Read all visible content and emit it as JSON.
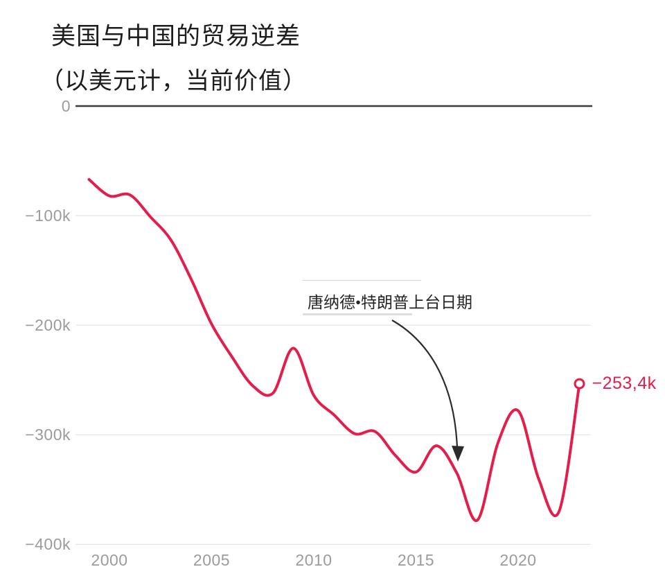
{
  "header": {
    "title": "美国与中国的贸易逆差",
    "subtitle": "（以美元计，当前价值）"
  },
  "annotation": {
    "text": "唐纳德•特朗普上台日期",
    "target_year": 2017
  },
  "colors": {
    "line": "#e41e4a",
    "end_label": "#e41e4a",
    "zero_axis": "#3c3c3c",
    "grid": "#e3e3e3",
    "tick_text": "#9b9b9b",
    "title_text": "#1d1d1d",
    "annotation_text": "#252525",
    "arrow": "#2b2b2b",
    "background": "#ffffff"
  },
  "chart_data": {
    "type": "line",
    "title": "美国与中国的贸易逆差（以美元计，当前价值）",
    "xlabel": "",
    "ylabel": "",
    "unit": "k (千，百万美元计)",
    "x": [
      1999,
      2000,
      2001,
      2002,
      2003,
      2004,
      2005,
      2006,
      2007,
      2008,
      2009,
      2010,
      2011,
      2012,
      2013,
      2014,
      2015,
      2016,
      2017,
      2018,
      2019,
      2020,
      2021,
      2022,
      2023
    ],
    "series": [
      {
        "name": "美国与中国的贸易逆差",
        "values": [
          -67,
          -82,
          -81,
          -101,
          -122,
          -158,
          -199,
          -229,
          -255,
          -262,
          -221,
          -264,
          -282,
          -299,
          -297,
          -319,
          -334,
          -310,
          -335,
          -378,
          -308,
          -278,
          -340,
          -370,
          -253.4
        ]
      }
    ],
    "ylim": [
      -400,
      0
    ],
    "xlim": [
      1999,
      2023.6
    ],
    "yticks": [
      {
        "value": 0,
        "label": "0"
      },
      {
        "value": -100,
        "label": "−100k"
      },
      {
        "value": -200,
        "label": "−200k"
      },
      {
        "value": -300,
        "label": "−300k"
      },
      {
        "value": -400,
        "label": "−400k"
      }
    ],
    "xticks": [
      {
        "value": 2000,
        "label": "2000"
      },
      {
        "value": 2005,
        "label": "2005"
      },
      {
        "value": 2010,
        "label": "2010"
      },
      {
        "value": 2015,
        "label": "2015"
      },
      {
        "value": 2020,
        "label": "2020"
      }
    ],
    "grid": "horizontal",
    "legend": "none",
    "end_label": "−253,4k"
  }
}
